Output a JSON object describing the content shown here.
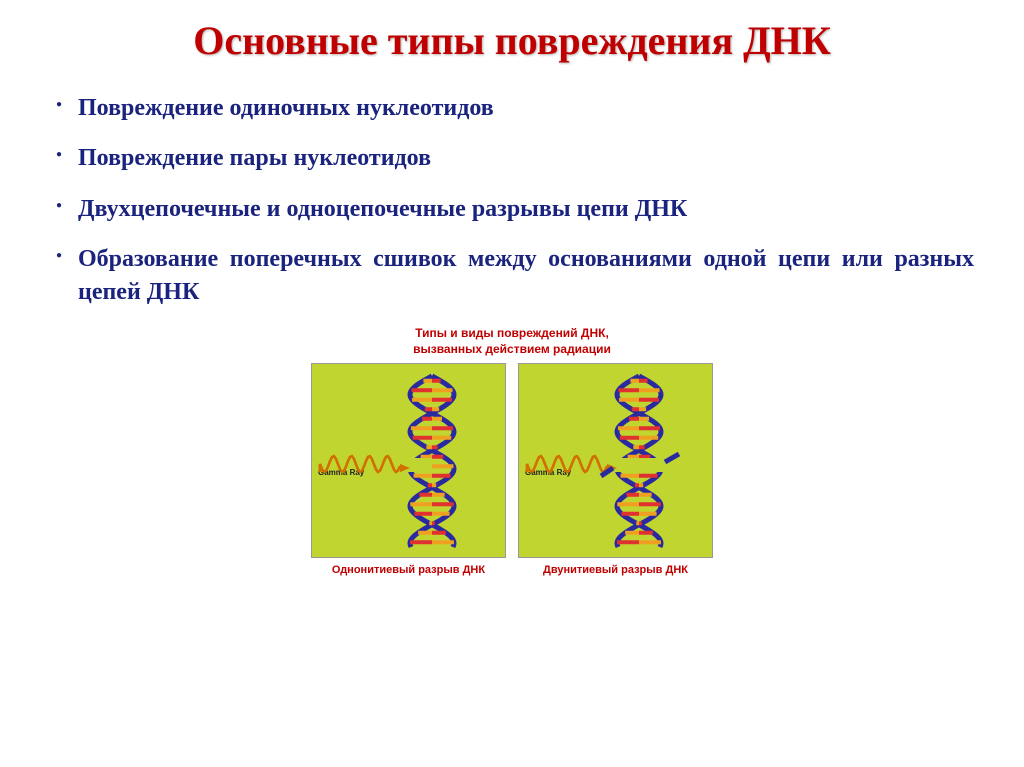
{
  "title": {
    "text": "Основные типы повреждения ДНК",
    "color": "#c00000",
    "fontsize": 40
  },
  "bullets": {
    "fontsize": 24,
    "color": "#1a237e",
    "items": [
      "Повреждение одиночных нуклеотидов",
      "Повреждение пары нуклеотидов",
      "Двухцепочечные и одноцепочечные разрывы цепи ДНК",
      "Образование поперечных сшивок между основаниями одной цепи или разных цепей ДНК"
    ]
  },
  "figure": {
    "title_line1": "Типы и виды повреждений ДНК,",
    "title_line2": "вызванных действием радиации",
    "title_color": "#c00000",
    "panel_bg": "#c1d531",
    "helix": {
      "backbone_color": "#2a2aa0",
      "base_colors": [
        "#e03030",
        "#f0a020"
      ],
      "gamma_color": "#d07000",
      "gamma_label": "Gamma Ray"
    },
    "panels": [
      {
        "caption": "Однонитиевый разрыв ДНК",
        "break": "single"
      },
      {
        "caption": "Двунитиевый разрыв ДНК",
        "break": "double"
      }
    ]
  }
}
